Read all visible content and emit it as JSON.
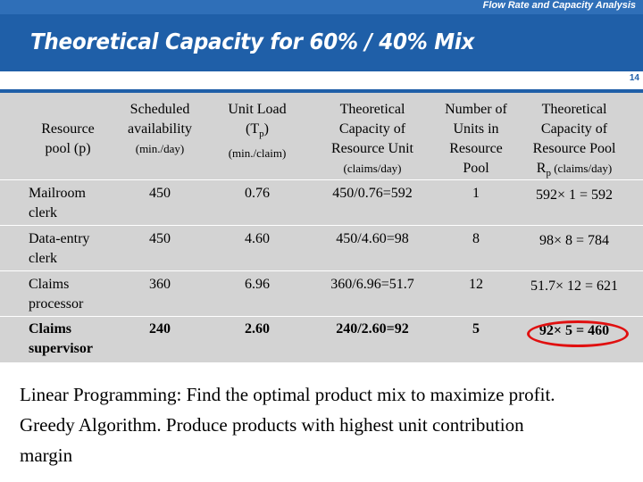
{
  "header": {
    "caption": "Flow Rate and Capacity Analysis",
    "title": "Theoretical Capacity for 60% / 40% Mix",
    "page_number": "14"
  },
  "table": {
    "headers": {
      "c0": {
        "l1": "Resource",
        "l2": "pool (p)"
      },
      "c1": {
        "l1": "Scheduled",
        "l2": "availability",
        "l3": "(min./day)"
      },
      "c2": {
        "l1": "Unit Load",
        "l2a": "(T",
        "l2sub": "p",
        "l2b": ")",
        "l3": "(min./claim)"
      },
      "c3": {
        "l1": "Theoretical",
        "l2": "Capacity of",
        "l3": "Resource Unit",
        "l4": "(claims/day)"
      },
      "c4": {
        "l1": "Number of",
        "l2": "Units in",
        "l3": "Resource",
        "l4": "Pool"
      },
      "c5": {
        "l1": "Theoretical",
        "l2": "Capacity  of",
        "l3": "Resource Pool",
        "l4a": "R",
        "l4sub": "p",
        "l4b": " (claims/day)"
      }
    },
    "rows": [
      {
        "pool_l1": "Mailroom",
        "pool_l2": "clerk",
        "availability": "450",
        "unit_load": "0.76",
        "unit_capacity": "450/0.76=592",
        "units": "1",
        "pool_capacity": "592× 1 = 592"
      },
      {
        "pool_l1": "Data-entry",
        "pool_l2": "clerk",
        "availability": "450",
        "unit_load": "4.60",
        "unit_capacity": "450/4.60=98",
        "units": "8",
        "pool_capacity": "98× 8 = 784"
      },
      {
        "pool_l1": "Claims",
        "pool_l2": "processor",
        "availability": "360",
        "unit_load": "6.96",
        "unit_capacity": "360/6.96=51.7",
        "units": "12",
        "pool_capacity": "51.7× 12 = 621"
      },
      {
        "pool_l1": "Claims",
        "pool_l2": "supervisor",
        "availability": "240",
        "unit_load": "2.60",
        "unit_capacity": "240/2.60=92",
        "units": "5",
        "pool_capacity": "92× 5 = 460"
      }
    ]
  },
  "notes": [
    "Linear Programming: Find the optimal product mix to maximize profit.",
    "Greedy Algorithm. Produce products with highest unit contribution",
    "margin"
  ],
  "colors": {
    "banner": "#1f5fa8",
    "table_bg": "#d3d3d3",
    "highlight": "#e01010"
  }
}
